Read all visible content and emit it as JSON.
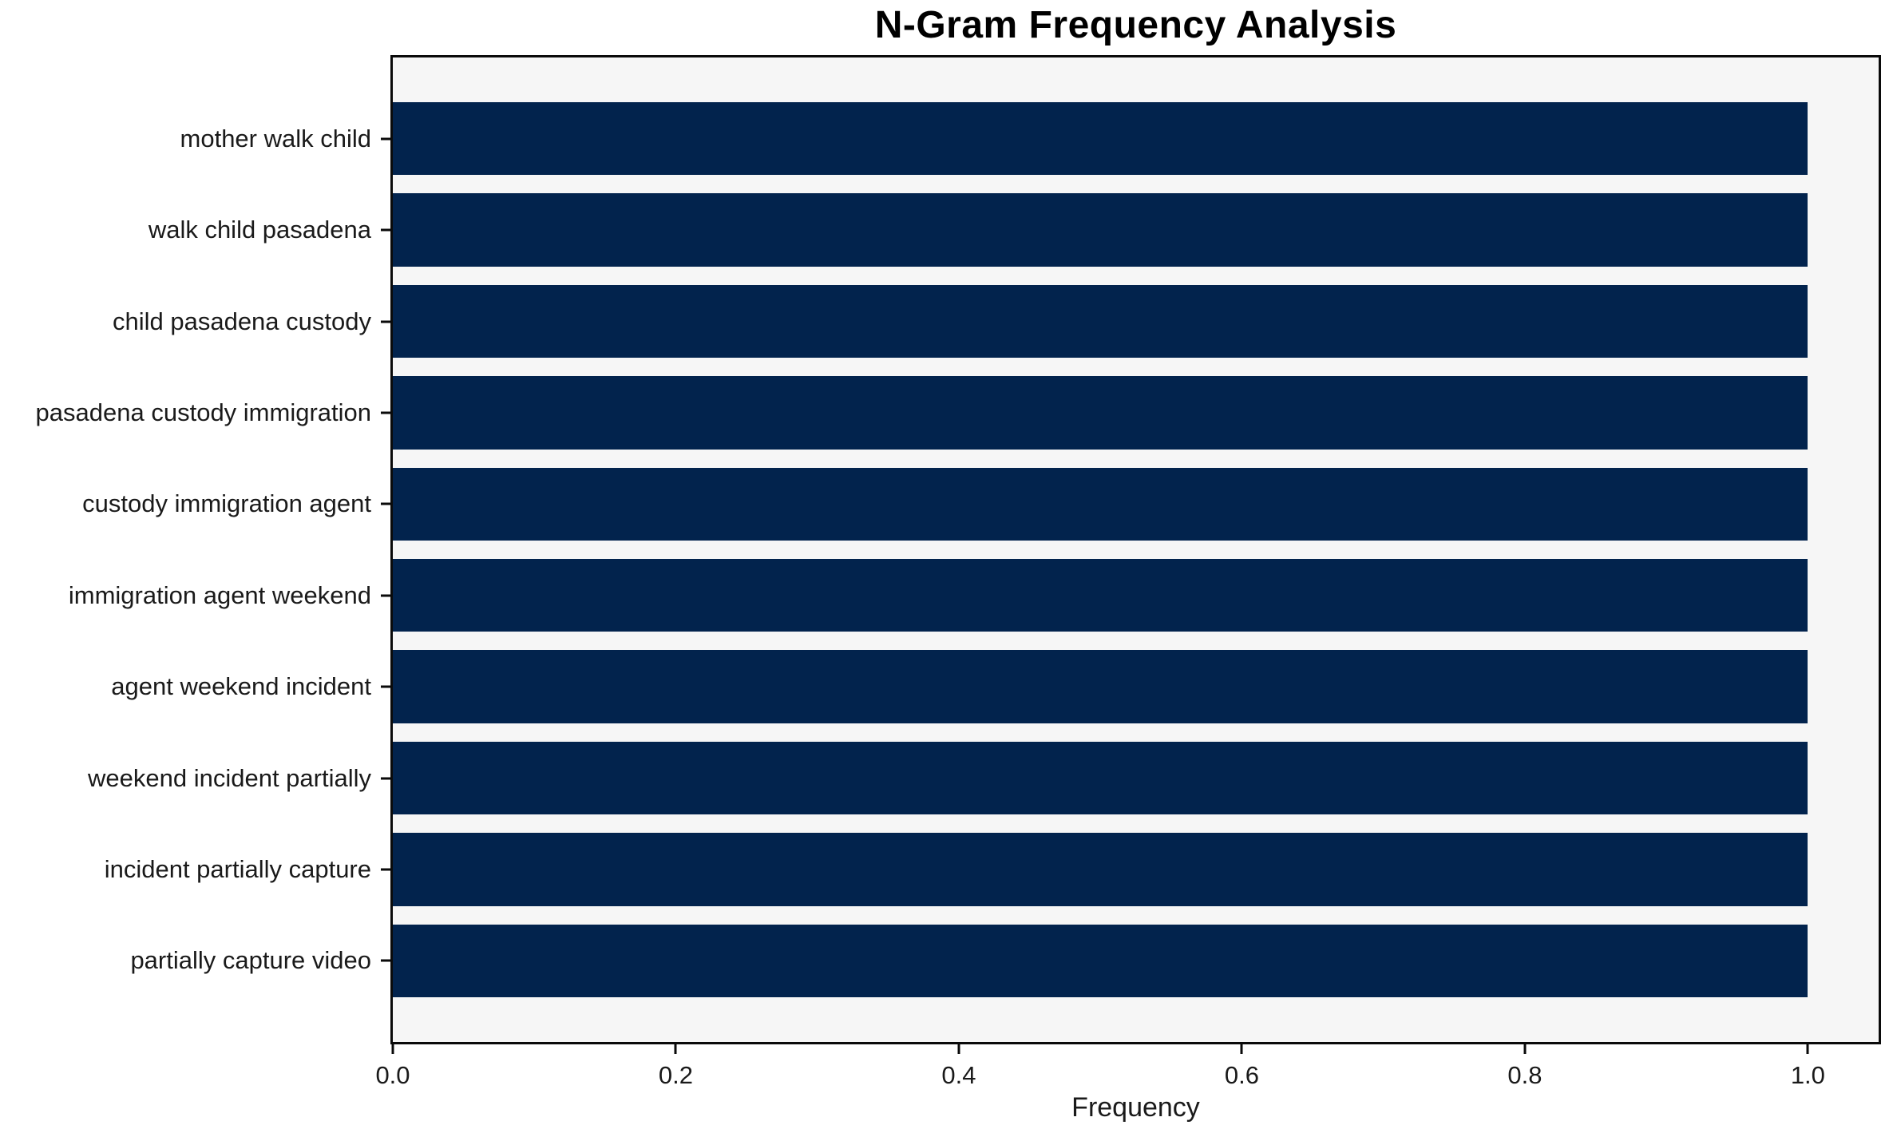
{
  "chart_data": {
    "type": "bar",
    "orientation": "horizontal",
    "title": "N-Gram Frequency Analysis",
    "xlabel": "Frequency",
    "ylabel": "",
    "categories": [
      "mother walk child",
      "walk child pasadena",
      "child pasadena custody",
      "pasadena custody immigration",
      "custody immigration agent",
      "immigration agent weekend",
      "agent weekend incident",
      "weekend incident partially",
      "incident partially capture",
      "partially capture video"
    ],
    "values": [
      1.0,
      1.0,
      1.0,
      1.0,
      1.0,
      1.0,
      1.0,
      1.0,
      1.0,
      1.0
    ],
    "x_tick_labels": [
      "0.0",
      "0.2",
      "0.4",
      "0.6",
      "0.8",
      "1.0"
    ],
    "x_tick_values": [
      0.0,
      0.2,
      0.4,
      0.6,
      0.8,
      1.0
    ],
    "xlim": [
      0,
      1.05
    ],
    "grid": false,
    "bar_fraction": 0.8,
    "colors": {
      "bar": "#02234d",
      "plot_background": "#f6f6f6",
      "spine": "#0a0a0a",
      "text": "#1a1a1a",
      "figure_background": "#ffffff"
    }
  }
}
